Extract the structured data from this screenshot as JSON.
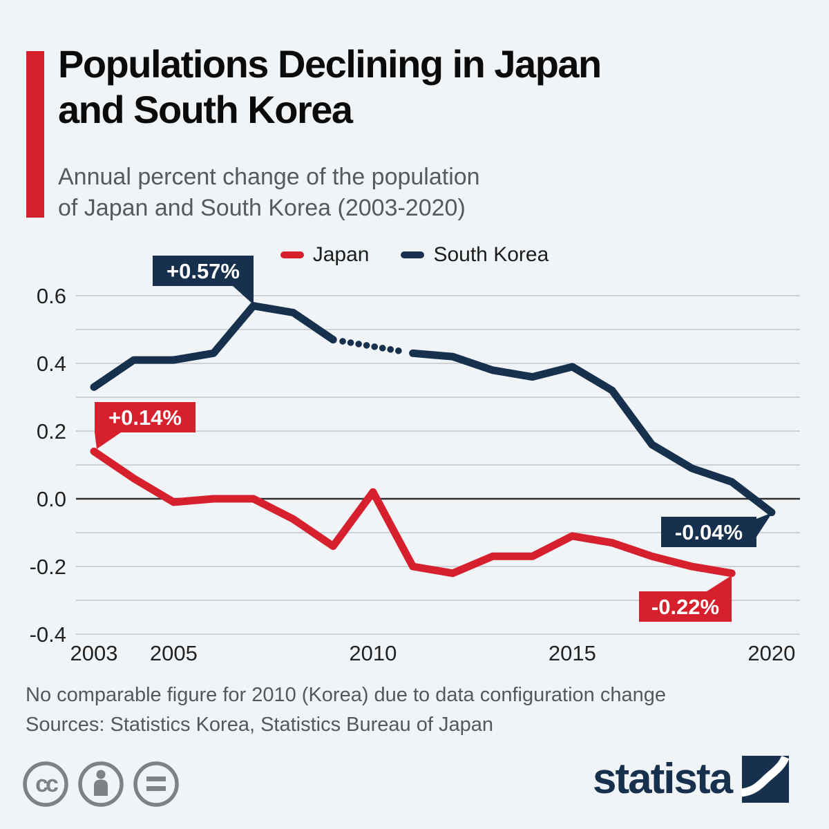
{
  "header": {
    "title_line1": "Populations Declining in Japan",
    "title_line2": "and South Korea",
    "subtitle_line1": "Annual percent change of the population",
    "subtitle_line2": "of Japan and South Korea (2003-2020)"
  },
  "legend": [
    {
      "label": "Japan",
      "color": "#d7202e"
    },
    {
      "label": "South Korea",
      "color": "#16304d"
    }
  ],
  "colors": {
    "background": "#f0f4f7",
    "japan_red": "#d7202e",
    "korea_navy": "#16304d",
    "grid": "#c8cdd2",
    "zero_line": "#2e2e2e",
    "subtitle_gray": "#58595b",
    "footer_gray": "#55585b",
    "icon_gray": "#7d8285"
  },
  "chart_data": {
    "type": "line",
    "x": [
      2003,
      2004,
      2005,
      2006,
      2007,
      2008,
      2009,
      2010,
      2011,
      2012,
      2013,
      2014,
      2015,
      2016,
      2017,
      2018,
      2019,
      2020
    ],
    "x_ticks": [
      {
        "year": 2003,
        "label": "2003"
      },
      {
        "year": 2005,
        "label": "2005"
      },
      {
        "year": 2010,
        "label": "2010"
      },
      {
        "year": 2015,
        "label": "2015"
      },
      {
        "year": 2020,
        "label": "2020"
      }
    ],
    "y_ticks": [
      {
        "value": 0.6,
        "label": "0.6"
      },
      {
        "value": 0.4,
        "label": "0.4"
      },
      {
        "value": 0.2,
        "label": "0.2"
      },
      {
        "value": 0.0,
        "label": "0.0"
      },
      {
        "value": -0.2,
        "label": "-0.2"
      },
      {
        "value": -0.4,
        "label": "-0.4"
      }
    ],
    "ylim": [
      -0.4,
      0.65
    ],
    "grid": "horizontal every 0.1",
    "legend_position": "top-center",
    "series": [
      {
        "name": "Japan",
        "color": "#d7202e",
        "values": [
          0.14,
          0.06,
          -0.01,
          0.0,
          0.0,
          -0.06,
          -0.14,
          0.02,
          -0.2,
          -0.22,
          -0.17,
          -0.17,
          -0.11,
          -0.13,
          -0.17,
          -0.2,
          -0.22,
          null
        ]
      },
      {
        "name": "South Korea",
        "color": "#16304d",
        "values": [
          0.33,
          0.41,
          0.41,
          0.43,
          0.57,
          0.55,
          0.47,
          null,
          0.43,
          0.42,
          0.38,
          0.36,
          0.39,
          0.32,
          0.16,
          0.09,
          0.05,
          -0.04
        ],
        "gap_note": "2010 missing - bridged with dotted segment 2009-2011"
      }
    ],
    "annotations": [
      {
        "text": "+0.57%",
        "series": "South Korea",
        "year": 2007,
        "value": 0.57
      },
      {
        "text": "+0.14%",
        "series": "Japan",
        "year": 2003,
        "value": 0.14
      },
      {
        "text": "-0.04%",
        "series": "South Korea",
        "year": 2020,
        "value": -0.04
      },
      {
        "text": "-0.22%",
        "series": "Japan",
        "year": 2019,
        "value": -0.22
      }
    ]
  },
  "footer": {
    "note": "No comparable figure for 2010 (Korea) due to data configuration change",
    "sources": "Sources: Statistics Korea, Statistics Bureau of Japan",
    "brand": "statista"
  }
}
